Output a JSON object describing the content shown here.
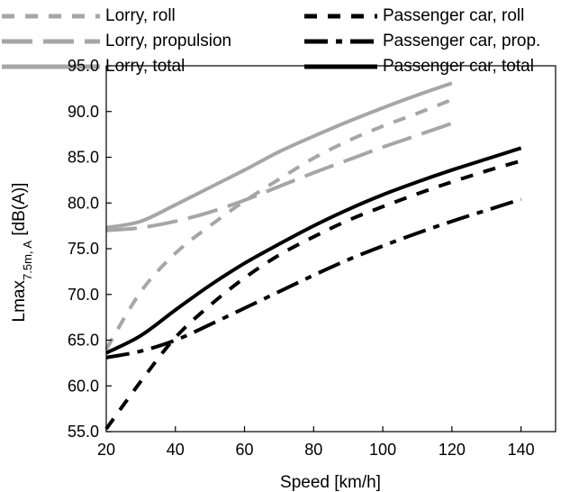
{
  "chart_data": {
    "type": "line",
    "title": "",
    "xlabel": "Speed [km/h]",
    "ylabel": {
      "main": "Lmax",
      "sub": "7.5m, A",
      "unit": " [dB(A)]"
    },
    "xlim": [
      20,
      150
    ],
    "ylim": [
      55,
      95
    ],
    "xticks": [
      "20",
      "40",
      "60",
      "80",
      "100",
      "120",
      "140"
    ],
    "yticks": [
      "55.0",
      "60.0",
      "65.0",
      "70.0",
      "75.0",
      "80.0",
      "85.0",
      "90.0",
      "95.0"
    ],
    "grid": "none",
    "legend_position": "top",
    "series": [
      {
        "name": "Lorry, roll",
        "color": "#a6a6a6",
        "dash": "short",
        "x": [
          20,
          30,
          40,
          50,
          60,
          70,
          80,
          90,
          100,
          110,
          120
        ],
        "y": [
          64,
          70.3,
          74.5,
          77.5,
          80.2,
          82.6,
          84.9,
          86.8,
          88.4,
          89.8,
          91.3
        ]
      },
      {
        "name": "Lorry, propulsion",
        "color": "#a6a6a6",
        "dash": "long",
        "x": [
          20,
          30,
          40,
          50,
          60,
          70,
          80,
          90,
          100,
          110,
          120
        ],
        "y": [
          77,
          77.3,
          78,
          79,
          80.3,
          81.8,
          83.3,
          84.7,
          86.1,
          87.4,
          88.7
        ]
      },
      {
        "name": "Lorry, total",
        "color": "#a6a6a6",
        "dash": "solid",
        "x": [
          20,
          30,
          40,
          50,
          60,
          70,
          80,
          90,
          100,
          110,
          120
        ],
        "y": [
          77.3,
          78,
          79.8,
          81.7,
          83.6,
          85.6,
          87.3,
          88.9,
          90.4,
          91.8,
          93.1
        ]
      },
      {
        "name": "Passenger car, roll",
        "color": "#000000",
        "dash": "short",
        "x": [
          20,
          30,
          40,
          50,
          60,
          70,
          80,
          90,
          100,
          110,
          120,
          130,
          140
        ],
        "y": [
          55.3,
          60.5,
          65.3,
          68.8,
          71.8,
          74.3,
          76.3,
          78.1,
          79.6,
          81,
          82.3,
          83.5,
          84.6
        ]
      },
      {
        "name": "Passenger car, prop.",
        "color": "#000000",
        "dash": "dashdot",
        "x": [
          20,
          30,
          40,
          50,
          60,
          70,
          80,
          90,
          100,
          110,
          120,
          130,
          140
        ],
        "y": [
          63.1,
          63.8,
          65,
          66.7,
          68.5,
          70.3,
          72.1,
          73.8,
          75.3,
          76.7,
          78,
          79.2,
          80.4
        ]
      },
      {
        "name": "Passenger car, total",
        "color": "#000000",
        "dash": "solid",
        "x": [
          20,
          30,
          40,
          50,
          60,
          70,
          80,
          90,
          100,
          110,
          120,
          130,
          140
        ],
        "y": [
          63.6,
          65.5,
          68.3,
          71,
          73.4,
          75.5,
          77.5,
          79.3,
          80.9,
          82.3,
          83.6,
          84.8,
          86
        ]
      }
    ]
  }
}
